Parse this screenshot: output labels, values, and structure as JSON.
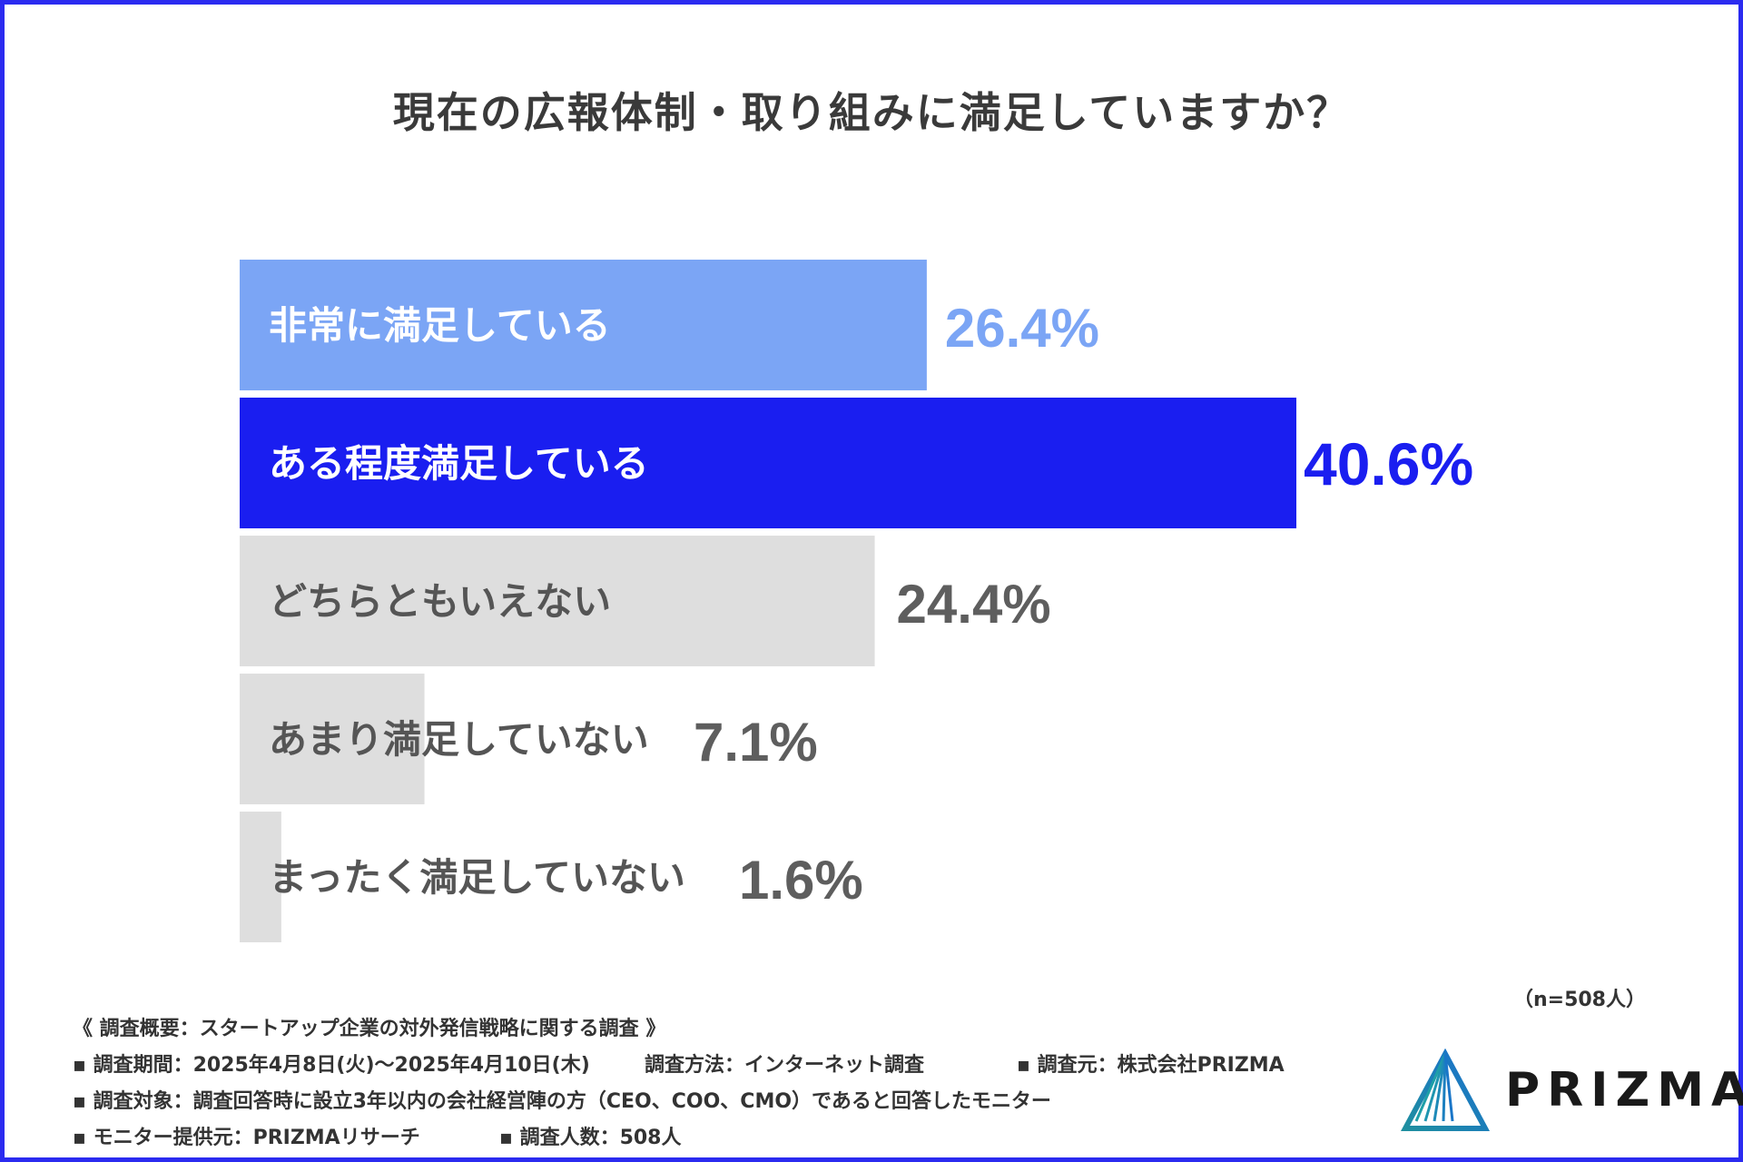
{
  "title": "現在の広報体制・取り組みに満足していますか？",
  "sample_size": "（n=508人）",
  "colors": {
    "border": "#2b2bf0",
    "bar_1": "#7ba5f5",
    "bar_2": "#1a1ef0",
    "bar_gray": "#dedede",
    "label_gray": "#555555",
    "value_gray": "#5e5e5e"
  },
  "chart_data": {
    "type": "bar",
    "orientation": "horizontal",
    "title": "現在の広報体制・取り組みに満足していますか？",
    "categories": [
      "非常に満足している",
      "ある程度満足している",
      "どちらともいえない",
      "あまり満足していない",
      "まったく満足していない"
    ],
    "values": [
      26.4,
      40.6,
      24.4,
      7.1,
      1.6
    ],
    "value_labels": [
      "26.4%",
      "40.6%",
      "24.4%",
      "7.1%",
      "1.6%"
    ],
    "xlim": [
      0,
      40.6
    ],
    "unit": "%"
  },
  "footer": {
    "overview": "《 調査概要：スタートアップ企業の対外発信戦略に関する調査 》",
    "period": "▪ 調査期間：2025年4月8日(火)〜2025年4月10日(木)",
    "method": "調査方法：インターネット調査",
    "source": "▪ 調査元：株式会社PRIZMA",
    "target": "▪ 調査対象：調査回答時に設立3年以内の会社経営陣の方（CEO、COO、CMO）であると回答したモニター",
    "provider": "▪ モニター提供元：PRIZMAリサーチ",
    "respondents": "▪ 調査人数：508人"
  },
  "logo": {
    "text": "PRIZMA",
    "icon": "prism-triangle-icon"
  }
}
